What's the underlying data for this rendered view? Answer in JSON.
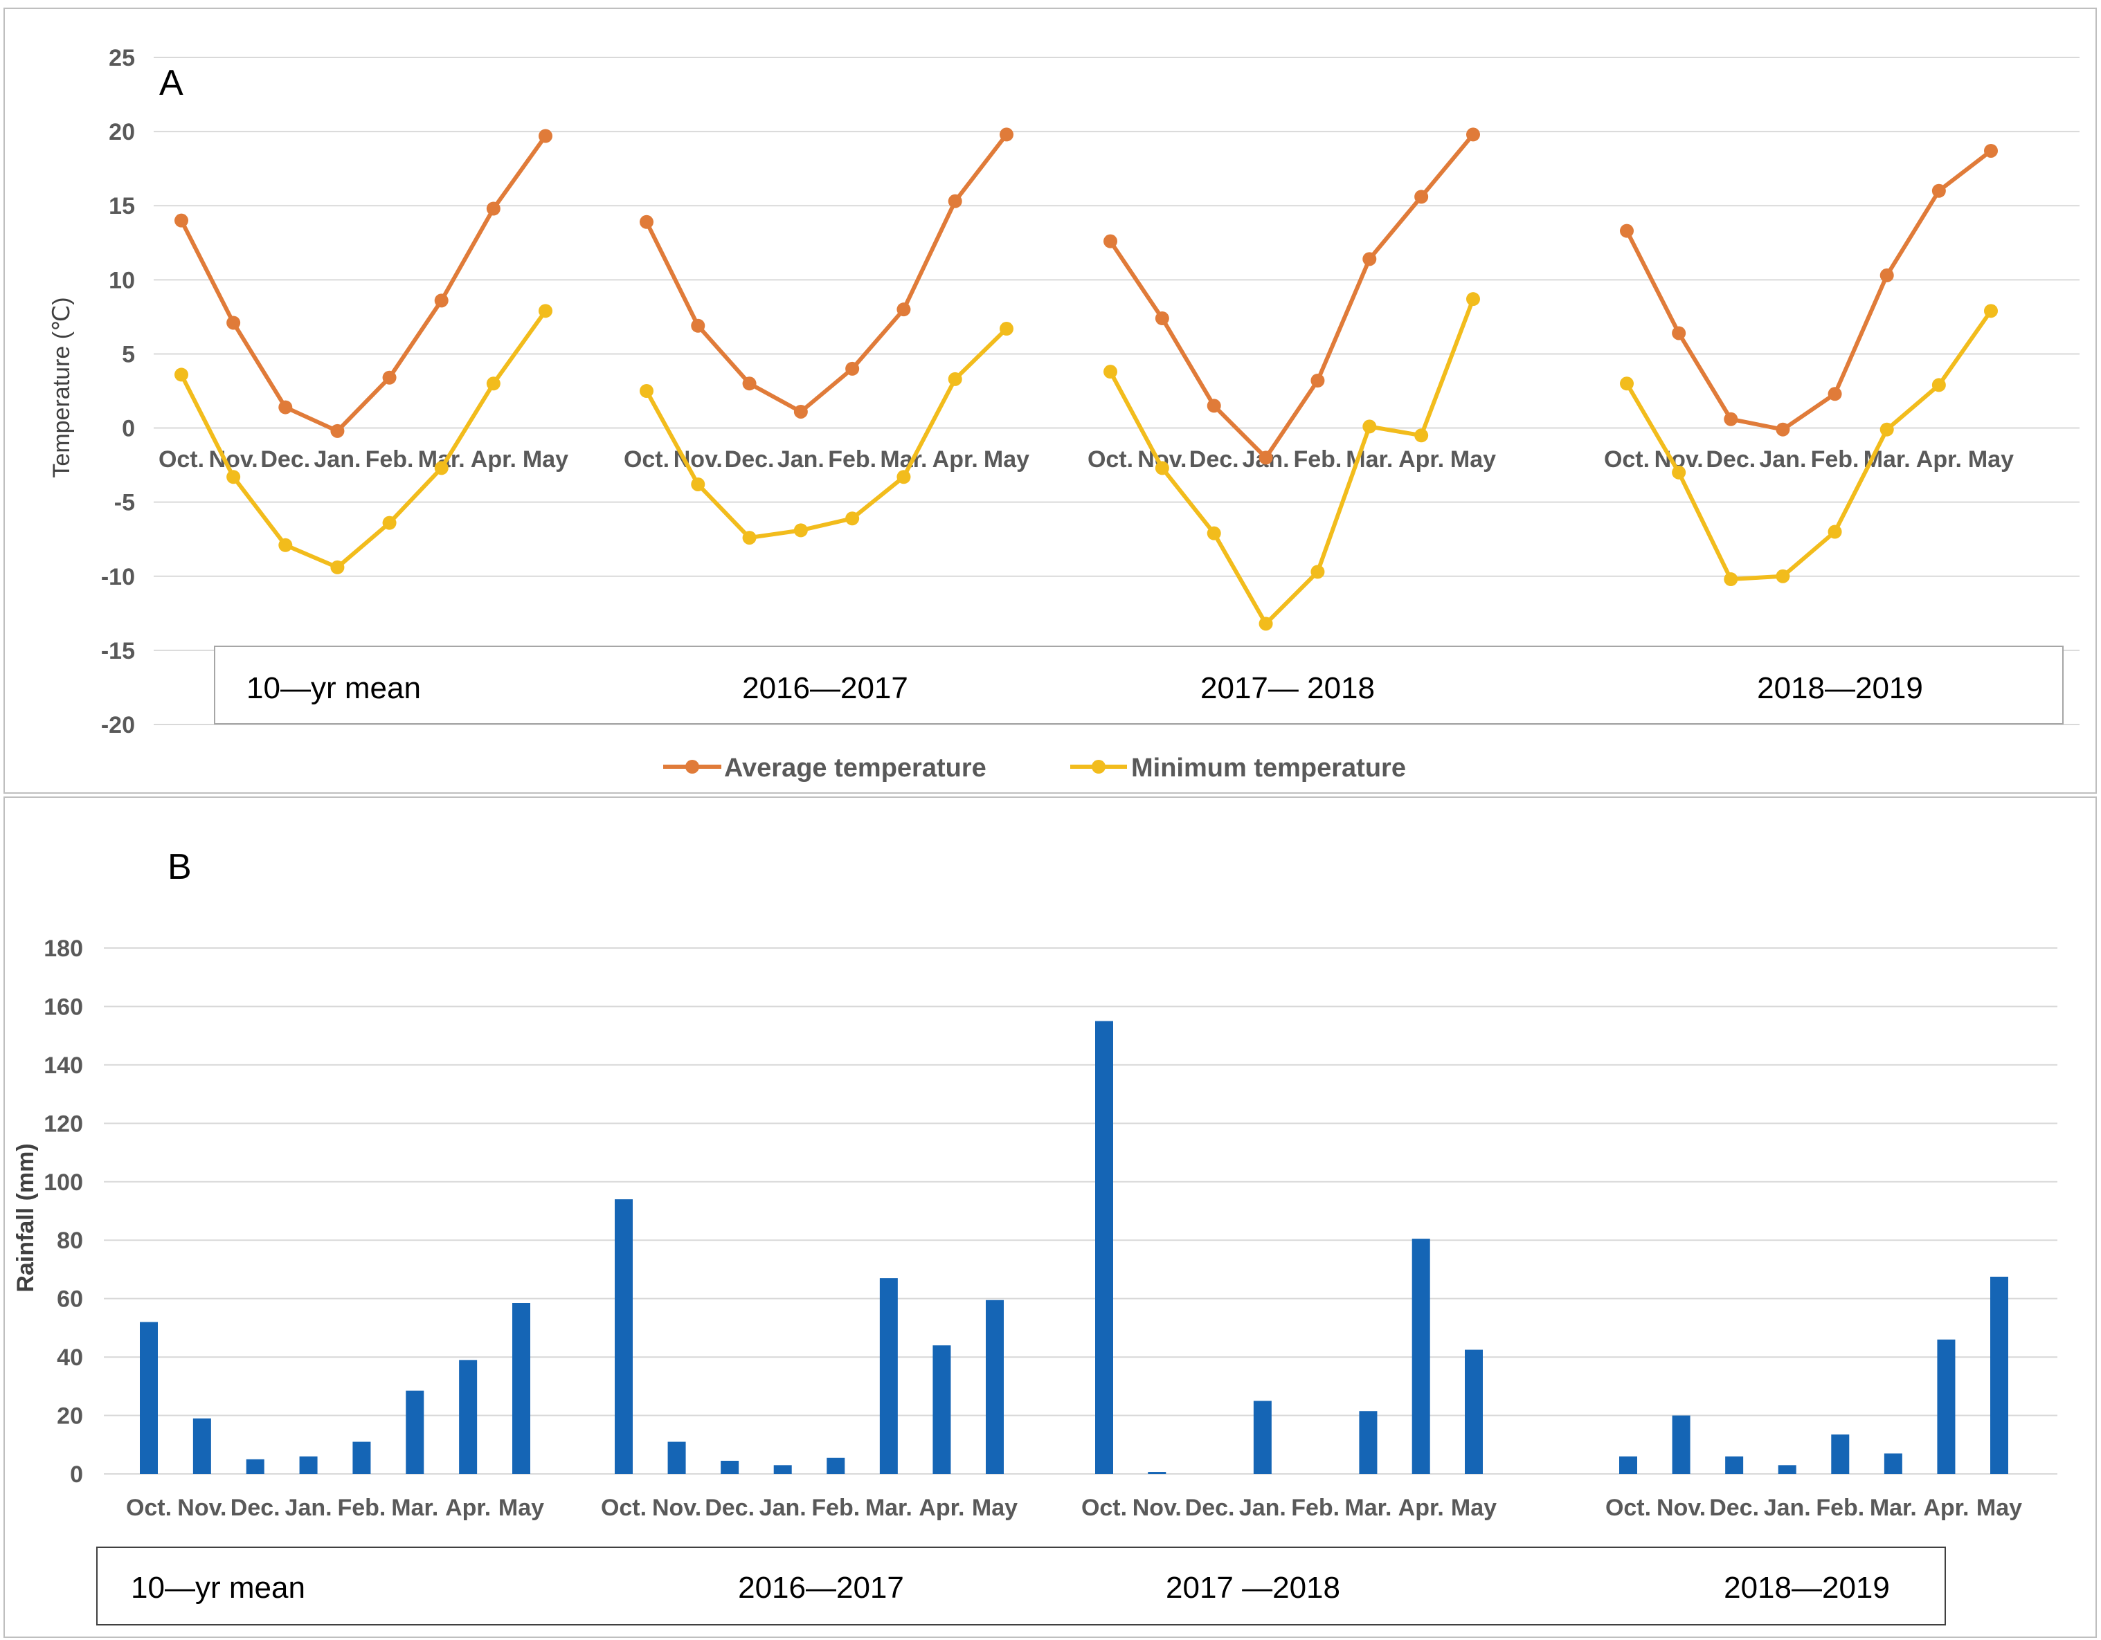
{
  "colors": {
    "average": "#E07B39",
    "minimum": "#F2BC1C",
    "rainfall": "#1565B5",
    "grid": "#D9D9D9",
    "frame": "#BFBFBF"
  },
  "chart_data": [
    {
      "panel": "A",
      "type": "line",
      "ylabel": "Temperature (℃)",
      "ylim": [
        -20,
        25
      ],
      "yticks": [
        25,
        20,
        15,
        10,
        5,
        0,
        -5,
        -10,
        -15,
        -20
      ],
      "grid": true,
      "legend_position": "bottom",
      "months": [
        "Oct.",
        "Nov.",
        "Dec.",
        "Jan.",
        "Feb.",
        "Mar.",
        "Apr.",
        "May"
      ],
      "groups": [
        {
          "label": "10—yr mean",
          "average": [
            14.0,
            7.1,
            1.4,
            -0.2,
            3.4,
            8.6,
            14.8,
            19.7
          ],
          "minimum": [
            3.6,
            -3.3,
            -7.9,
            -9.4,
            -6.4,
            -2.7,
            3.0,
            7.9
          ]
        },
        {
          "label": "2016—2017",
          "average": [
            13.9,
            6.9,
            3.0,
            1.1,
            4.0,
            8.0,
            15.3,
            19.8
          ],
          "minimum": [
            2.5,
            -3.8,
            -7.4,
            -6.9,
            -6.1,
            -3.3,
            3.3,
            6.7
          ]
        },
        {
          "label": "2017— 2018",
          "average": [
            12.6,
            7.4,
            1.5,
            -2.0,
            3.2,
            11.4,
            15.6,
            19.8
          ],
          "minimum": [
            3.8,
            -2.7,
            -7.1,
            -13.2,
            -9.7,
            0.1,
            -0.5,
            8.7
          ]
        },
        {
          "label": "2018—2019",
          "average": [
            13.3,
            6.4,
            0.6,
            -0.1,
            2.3,
            10.3,
            16.0,
            18.7
          ],
          "minimum": [
            3.0,
            -3.0,
            -10.2,
            -10.0,
            -7.0,
            -0.1,
            2.9,
            7.9
          ]
        }
      ],
      "series": [
        {
          "name": "Average temperature",
          "key": "average"
        },
        {
          "name": "Minimum temperature",
          "key": "minimum"
        }
      ]
    },
    {
      "panel": "B",
      "type": "bar",
      "ylabel": "Rainfall (mm)",
      "ylim": [
        0,
        180
      ],
      "yticks": [
        180,
        160,
        140,
        120,
        100,
        80,
        60,
        40,
        20,
        0
      ],
      "grid": true,
      "months": [
        "Oct.",
        "Nov.",
        "Dec.",
        "Jan.",
        "Feb.",
        "Mar.",
        "Apr.",
        "May"
      ],
      "groups": [
        {
          "label": "10—yr mean",
          "values": [
            52.0,
            19.0,
            5.0,
            6.0,
            11.0,
            28.5,
            39.0,
            58.5
          ]
        },
        {
          "label": "2016—2017",
          "values": [
            94.0,
            11.0,
            4.5,
            3.0,
            5.5,
            67.0,
            44.0,
            59.5
          ]
        },
        {
          "label": "2017 —2018",
          "values": [
            155.0,
            0.7,
            0.0,
            25.0,
            0.0,
            21.5,
            80.5,
            42.5
          ]
        },
        {
          "label": "2018—2019",
          "values": [
            6.0,
            20.0,
            6.0,
            3.0,
            13.5,
            7.0,
            46.0,
            67.5
          ]
        }
      ]
    }
  ]
}
